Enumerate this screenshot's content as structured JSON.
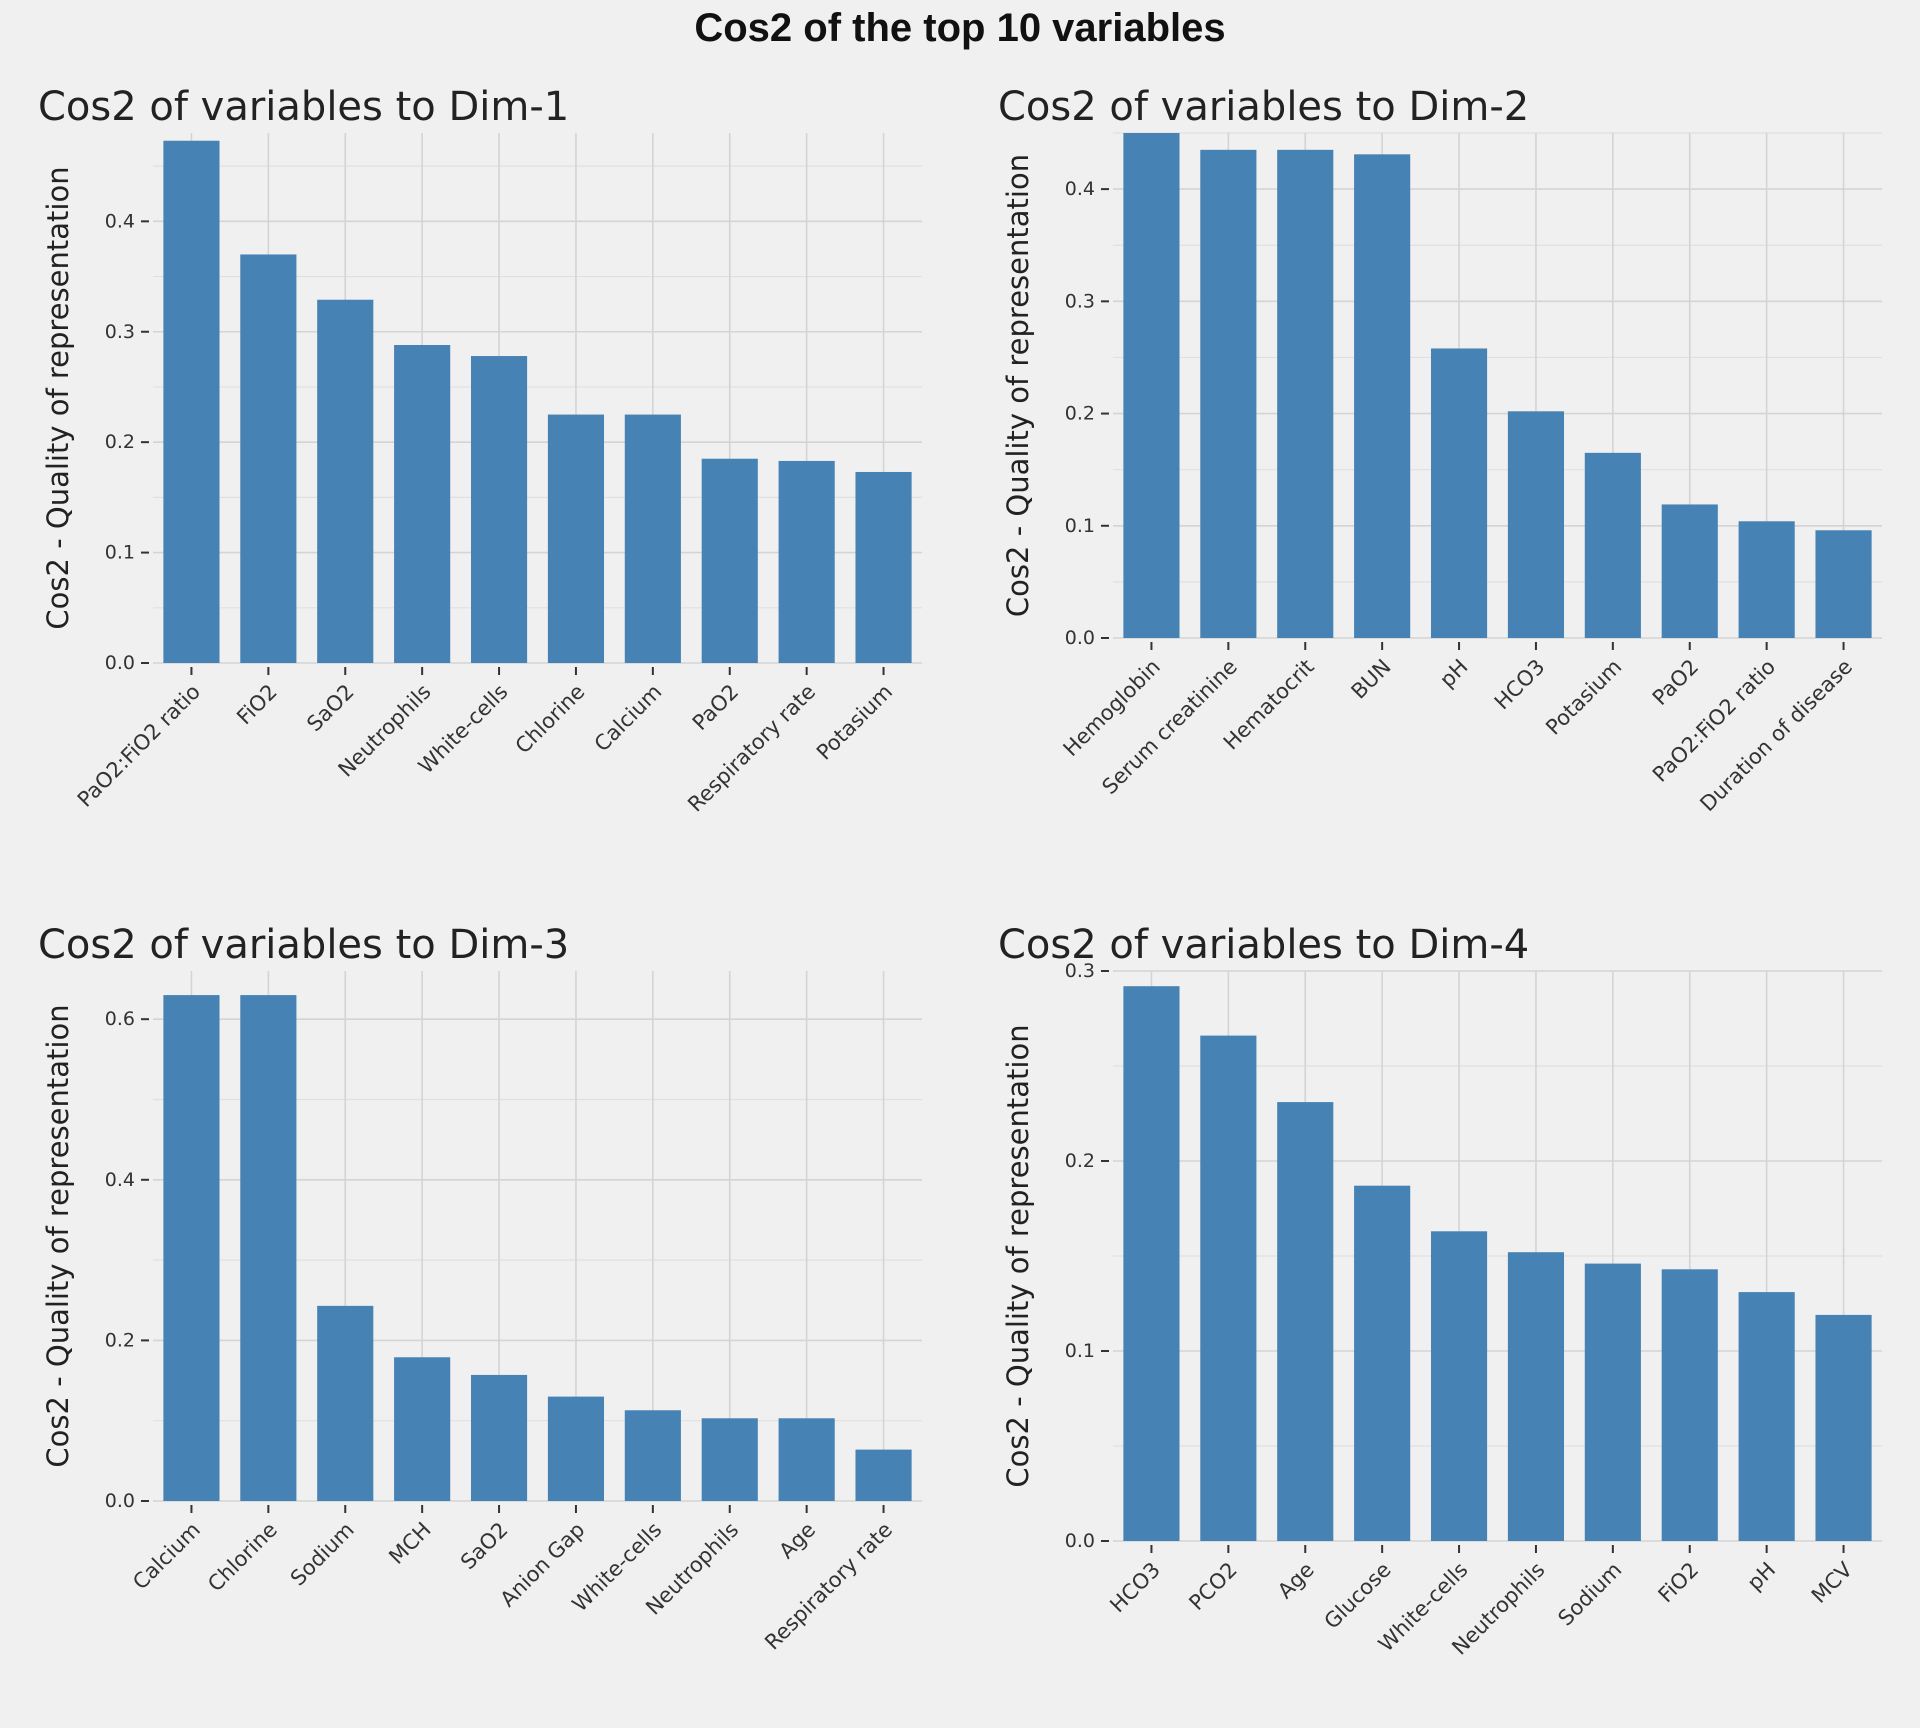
{
  "figure": {
    "title": "Cos2 of the top 10 variables"
  },
  "colors": {
    "bar": "#4682b4",
    "background": "#f0f0f0",
    "grid": "#d4d4d4"
  },
  "chart_data": [
    {
      "type": "bar",
      "title": "Cos2 of variables to Dim-1",
      "ylabel": "Cos2 - Quality of representation",
      "xlabel": "",
      "categories": [
        "PaO2:FiO2 ratio",
        "FiO2",
        "SaO2",
        "Neutrophils",
        "White-cells",
        "Chlorine",
        "Calcium",
        "PaO2",
        "Respiratory rate",
        "Potasium"
      ],
      "values": [
        0.473,
        0.37,
        0.329,
        0.288,
        0.278,
        0.225,
        0.225,
        0.185,
        0.183,
        0.173
      ],
      "ylim": [
        0,
        0.48
      ],
      "yticks": [
        "0.0",
        "0.1",
        "0.2",
        "0.3",
        "0.4"
      ],
      "grid": true
    },
    {
      "type": "bar",
      "title": "Cos2 of variables to Dim-2",
      "ylabel": "Cos2 - Quality of representation",
      "xlabel": "",
      "categories": [
        "Hemoglobin",
        "Serum creatinine",
        "Hematocrit",
        "BUN",
        "pH",
        "HCO3",
        "Potasium",
        "PaO2",
        "PaO2:FiO2 ratio",
        "Duration of disease"
      ],
      "values": [
        0.45,
        0.435,
        0.435,
        0.431,
        0.258,
        0.202,
        0.165,
        0.119,
        0.104,
        0.096
      ],
      "ylim": [
        0,
        0.45
      ],
      "yticks": [
        "0.0",
        "0.1",
        "0.2",
        "0.3",
        "0.4"
      ],
      "grid": true
    },
    {
      "type": "bar",
      "title": "Cos2 of variables to Dim-3",
      "ylabel": "Cos2 - Quality of representation",
      "xlabel": "",
      "categories": [
        "Calcium",
        "Chlorine",
        "Sodium",
        "MCH",
        "SaO2",
        "Anion Gap",
        "White-cells",
        "Neutrophils",
        "Age",
        "Respiratory rate"
      ],
      "values": [
        0.63,
        0.63,
        0.243,
        0.179,
        0.157,
        0.13,
        0.113,
        0.103,
        0.103,
        0.064
      ],
      "ylim": [
        0,
        0.66
      ],
      "yticks": [
        "0.0",
        "0.2",
        "0.4",
        "0.6"
      ],
      "grid": true
    },
    {
      "type": "bar",
      "title": "Cos2 of variables to Dim-4",
      "ylabel": "Cos2 - Quality of representation",
      "xlabel": "",
      "categories": [
        "HCO3",
        "PCO2",
        "Age",
        "Glucose",
        "White-cells",
        "Neutrophils",
        "Sodium",
        "FiO2",
        "pH",
        "MCV"
      ],
      "values": [
        0.292,
        0.266,
        0.231,
        0.187,
        0.163,
        0.152,
        0.146,
        0.143,
        0.131,
        0.119
      ],
      "ylim": [
        0,
        0.3
      ],
      "yticks": [
        "0.0",
        "0.1",
        "0.2",
        "0.3"
      ],
      "grid": true
    }
  ]
}
